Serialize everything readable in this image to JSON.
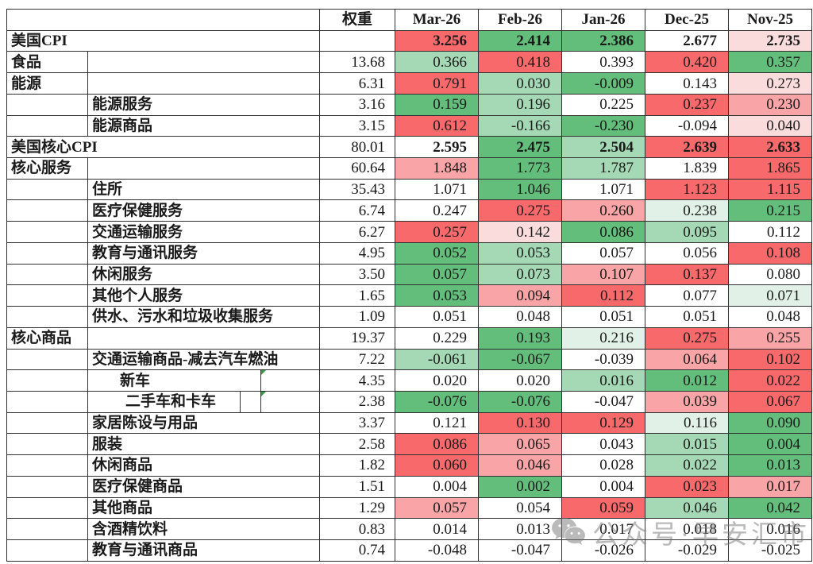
{
  "palette": {
    "R": "#f8696b",
    "r2": "#f9a4a6",
    "r1": "#fbdcdd",
    "W": "#ffffff",
    "g1": "#e2f1e7",
    "g2": "#a5d9b5",
    "G": "#63be7b"
  },
  "watermark": {
    "icon": "wechat-icon",
    "text": "公众号·早安汇市"
  },
  "chart_data": {
    "type": "heatmap",
    "corner_label": "",
    "weight_header": "权重",
    "columns": [
      "Mar-26",
      "Feb-26",
      "Jan-26",
      "Dec-25",
      "Nov-25"
    ],
    "color_legend": "red = high within row, green = low within row",
    "rows": [
      {
        "label": "美国CPI",
        "level": "top",
        "bold": true,
        "weight": "",
        "values": [
          "3.256",
          "2.414",
          "2.386",
          "2.677",
          "2.735"
        ],
        "colors": [
          "R",
          "G",
          "G",
          "W",
          "r1"
        ]
      },
      {
        "label": "食品",
        "level": "cat",
        "bold": false,
        "weight": "13.68",
        "values": [
          "0.366",
          "0.418",
          "0.393",
          "0.420",
          "0.357"
        ],
        "colors": [
          "g2",
          "R",
          "W",
          "R",
          "G"
        ]
      },
      {
        "label": "能源",
        "level": "cat",
        "bold": false,
        "weight": "6.31",
        "values": [
          "0.791",
          "0.030",
          "-0.009",
          "0.143",
          "0.273"
        ],
        "colors": [
          "R",
          "g2",
          "G",
          "W",
          "r1"
        ]
      },
      {
        "label": "能源服务",
        "level": "sub",
        "bold": false,
        "weight": "3.16",
        "values": [
          "0.159",
          "0.196",
          "0.225",
          "0.237",
          "0.230"
        ],
        "colors": [
          "G",
          "g2",
          "W",
          "R",
          "r2"
        ]
      },
      {
        "label": "能源商品",
        "level": "sub",
        "bold": false,
        "weight": "3.15",
        "values": [
          "0.612",
          "-0.166",
          "-0.230",
          "-0.094",
          "0.040"
        ],
        "colors": [
          "R",
          "g2",
          "G",
          "W",
          "r1"
        ]
      },
      {
        "label": "美国核心CPI",
        "level": "top",
        "bold": true,
        "weight": "80.01",
        "values": [
          "2.595",
          "2.475",
          "2.504",
          "2.639",
          "2.633"
        ],
        "colors": [
          "W",
          "G",
          "g2",
          "R",
          "R"
        ]
      },
      {
        "label": "核心服务",
        "level": "cat",
        "bold": false,
        "weight": "60.64",
        "values": [
          "1.848",
          "1.773",
          "1.787",
          "1.839",
          "1.865"
        ],
        "colors": [
          "r2",
          "G",
          "g2",
          "W",
          "R"
        ]
      },
      {
        "label": "住所",
        "level": "sub",
        "bold": false,
        "weight": "35.43",
        "values": [
          "1.071",
          "1.046",
          "1.071",
          "1.123",
          "1.115"
        ],
        "colors": [
          "W",
          "G",
          "W",
          "R",
          "R"
        ]
      },
      {
        "label": "医疗保健服务",
        "level": "sub",
        "bold": false,
        "weight": "6.74",
        "values": [
          "0.247",
          "0.275",
          "0.260",
          "0.238",
          "0.215"
        ],
        "colors": [
          "W",
          "R",
          "r2",
          "g1",
          "G"
        ]
      },
      {
        "label": "交通运输服务",
        "level": "sub",
        "bold": false,
        "weight": "6.27",
        "values": [
          "0.257",
          "0.142",
          "0.086",
          "0.095",
          "0.112"
        ],
        "colors": [
          "R",
          "r1",
          "G",
          "g2",
          "W"
        ]
      },
      {
        "label": "教育与通讯服务",
        "level": "sub",
        "bold": false,
        "weight": "4.95",
        "values": [
          "0.052",
          "0.053",
          "0.057",
          "0.056",
          "0.108"
        ],
        "colors": [
          "G",
          "g2",
          "W",
          "W",
          "R"
        ]
      },
      {
        "label": "休闲服务",
        "level": "sub",
        "bold": false,
        "weight": "3.50",
        "values": [
          "0.057",
          "0.073",
          "0.107",
          "0.137",
          "0.080"
        ],
        "colors": [
          "G",
          "g2",
          "r2",
          "R",
          "W"
        ]
      },
      {
        "label": "其他个人服务",
        "level": "sub",
        "bold": false,
        "weight": "1.65",
        "values": [
          "0.053",
          "0.094",
          "0.112",
          "0.077",
          "0.071"
        ],
        "colors": [
          "G",
          "r2",
          "R",
          "W",
          "g1"
        ]
      },
      {
        "label": "供水、污水和垃圾收集服务",
        "level": "sub",
        "bold": false,
        "weight": "1.09",
        "values": [
          "0.051",
          "0.048",
          "0.051",
          "0.051",
          "0.048"
        ],
        "colors": [
          "W",
          "W",
          "W",
          "W",
          "W"
        ]
      },
      {
        "label": "核心商品",
        "level": "cat",
        "bold": false,
        "weight": "19.37",
        "values": [
          "0.229",
          "0.193",
          "0.216",
          "0.275",
          "0.255"
        ],
        "colors": [
          "W",
          "G",
          "g1",
          "R",
          "r2"
        ]
      },
      {
        "label": "交通运输商品-减去汽车燃油",
        "level": "sub",
        "bold": false,
        "weight": "7.22",
        "values": [
          "-0.061",
          "-0.067",
          "-0.039",
          "0.064",
          "0.102"
        ],
        "colors": [
          "g2",
          "G",
          "W",
          "r2",
          "R"
        ]
      },
      {
        "label": "新车",
        "level": "sub2",
        "bold": false,
        "note_marker": true,
        "weight": "4.35",
        "values": [
          "0.020",
          "0.020",
          "0.016",
          "0.012",
          "0.022"
        ],
        "colors": [
          "W",
          "W",
          "g2",
          "G",
          "R"
        ]
      },
      {
        "label": "二手车和卡车",
        "level": "sub3",
        "bold": false,
        "note_marker": true,
        "weight": "2.38",
        "values": [
          "-0.076",
          "-0.076",
          "-0.047",
          "0.039",
          "0.067"
        ],
        "colors": [
          "G",
          "G",
          "W",
          "r2",
          "R"
        ]
      },
      {
        "label": "家居陈设与用品",
        "level": "sub",
        "bold": false,
        "weight": "3.37",
        "values": [
          "0.121",
          "0.130",
          "0.129",
          "0.116",
          "0.090"
        ],
        "colors": [
          "W",
          "R",
          "R",
          "g1",
          "G"
        ]
      },
      {
        "label": "服装",
        "level": "sub",
        "bold": false,
        "weight": "2.58",
        "values": [
          "0.086",
          "0.065",
          "0.043",
          "0.015",
          "0.004"
        ],
        "colors": [
          "R",
          "r2",
          "W",
          "g2",
          "G"
        ]
      },
      {
        "label": "休闲商品",
        "level": "sub",
        "bold": false,
        "weight": "1.82",
        "values": [
          "0.060",
          "0.046",
          "0.028",
          "0.022",
          "0.013"
        ],
        "colors": [
          "R",
          "r2",
          "W",
          "g2",
          "G"
        ]
      },
      {
        "label": "医疗保健商品",
        "level": "sub",
        "bold": false,
        "weight": "1.51",
        "values": [
          "0.004",
          "0.002",
          "0.004",
          "0.023",
          "0.017"
        ],
        "colors": [
          "W",
          "G",
          "W",
          "R",
          "r2"
        ]
      },
      {
        "label": "其他商品",
        "level": "sub",
        "bold": false,
        "weight": "1.29",
        "values": [
          "0.057",
          "0.054",
          "0.059",
          "0.046",
          "0.042"
        ],
        "colors": [
          "r2",
          "W",
          "R",
          "g2",
          "G"
        ]
      },
      {
        "label": "含酒精饮料",
        "level": "sub",
        "bold": false,
        "weight": "0.83",
        "values": [
          "0.014",
          "0.013",
          "0.017",
          "0.018",
          "0.016"
        ],
        "colors": [
          "W",
          "W",
          "W",
          "W",
          "W"
        ]
      },
      {
        "label": "教育与通讯商品",
        "level": "sub",
        "bold": false,
        "weight": "0.74",
        "values": [
          "-0.048",
          "-0.047",
          "-0.026",
          "-0.029",
          "-0.025"
        ],
        "colors": [
          "W",
          "W",
          "W",
          "W",
          "W"
        ]
      }
    ]
  }
}
